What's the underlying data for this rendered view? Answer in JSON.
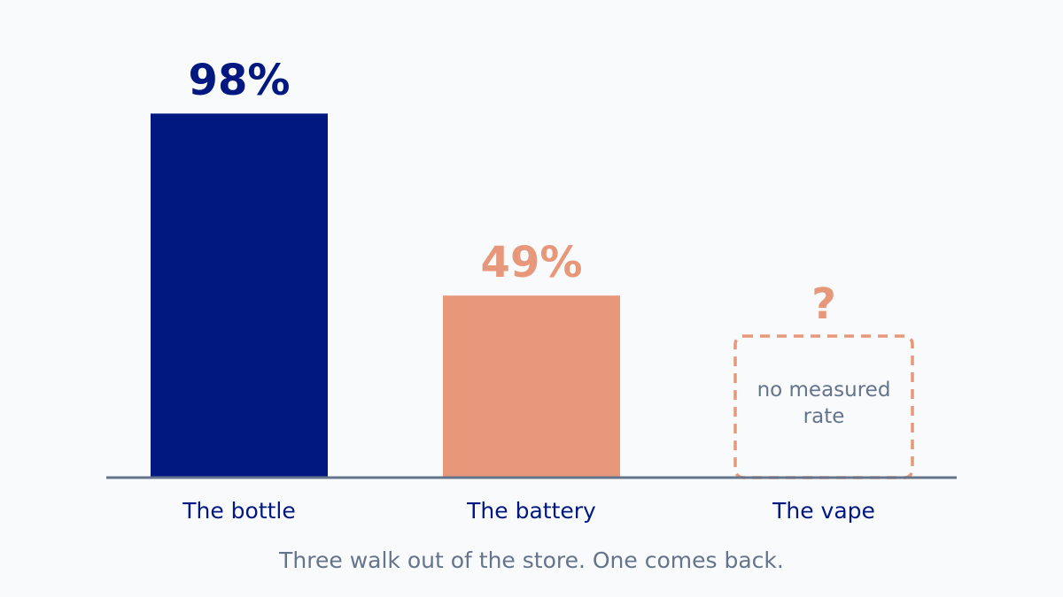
{
  "chart_data": {
    "type": "bar",
    "categories": [
      "The bottle",
      "The battery",
      "The vape"
    ],
    "values": [
      98,
      49,
      null
    ],
    "value_labels": [
      "98%",
      "49%",
      "?"
    ],
    "missing_note": [
      "no measured",
      "rate"
    ],
    "caption": "Three walk out of the store. One comes back.",
    "ylim": [
      0,
      100
    ],
    "grid": false,
    "colors": {
      "bottle": "#001880",
      "battery": "#e7977a",
      "vape": "#e7977a",
      "axis": "#64748b",
      "label": "#001880",
      "muted": "#64748b"
    }
  }
}
